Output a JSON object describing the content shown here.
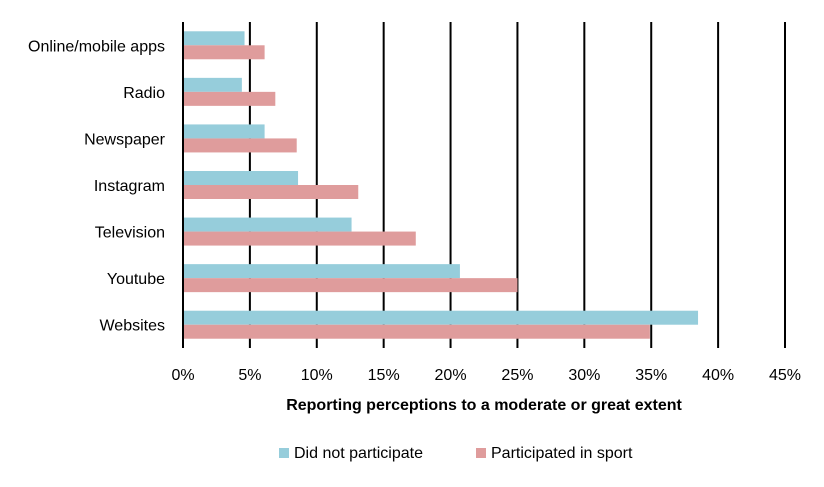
{
  "chart_data": {
    "type": "bar",
    "orientation": "horizontal",
    "title": "",
    "xlabel": "Reporting perceptions to a moderate or great extent",
    "ylabel": "",
    "categories": [
      "Online/mobile apps",
      "Radio",
      "Newspaper",
      "Instagram",
      "Television",
      "Youtube",
      "Websites"
    ],
    "series": [
      {
        "name": "Did not participate",
        "color": "#96CDDB",
        "values": [
          4.6,
          4.4,
          6.1,
          8.6,
          12.6,
          20.7,
          38.5
        ]
      },
      {
        "name": "Participated in sport",
        "color": "#DF9C9C",
        "values": [
          6.1,
          6.9,
          8.5,
          13.1,
          17.4,
          25.0,
          34.9
        ]
      }
    ],
    "xlim": [
      0,
      45
    ],
    "xticks": [
      "0%",
      "5%",
      "10%",
      "15%",
      "20%",
      "25%",
      "30%",
      "35%",
      "40%",
      "45%"
    ],
    "grid": "vertical",
    "legend": "bottom"
  }
}
